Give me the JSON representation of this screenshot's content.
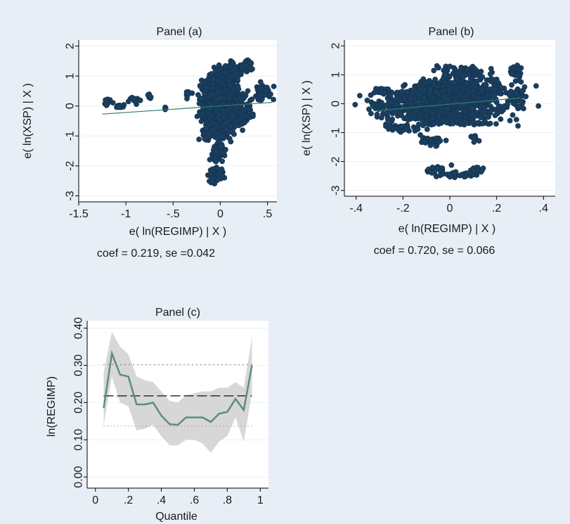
{
  "chart_data": [
    {
      "type": "scatter",
      "title": "Panel (a)",
      "xlabel": "e( ln(REGIMP) | X )",
      "ylabel": "e( ln(XSP) | X )",
      "xlim": [
        -1.5,
        0.6
      ],
      "ylim": [
        -3.2,
        2.2
      ],
      "xticks": [
        -1.5,
        -1,
        -0.5,
        0,
        0.5
      ],
      "xtick_labels": [
        "-1.5",
        "-1",
        "-.5",
        "0",
        ".5"
      ],
      "yticks": [
        -3,
        -2,
        -1,
        0,
        1,
        2
      ],
      "ytick_labels": [
        "-3",
        "-2",
        "-1",
        "0",
        "1",
        "2"
      ],
      "grid": "horizontal",
      "caption": "coef = 0.219, se =0.042",
      "fit": {
        "x": [
          -1.25,
          0.55
        ],
        "y": [
          -0.27,
          0.12
        ]
      },
      "clusters": [
        {
          "cx": -1.2,
          "cy": 0.15,
          "rx": 0.04,
          "ry": 0.12,
          "n": 14
        },
        {
          "cx": -1.05,
          "cy": 0.0,
          "rx": 0.04,
          "ry": 0.08,
          "n": 10
        },
        {
          "cx": -0.9,
          "cy": 0.2,
          "rx": 0.05,
          "ry": 0.1,
          "n": 12
        },
        {
          "cx": -0.75,
          "cy": 0.3,
          "rx": 0.03,
          "ry": 0.08,
          "n": 6
        },
        {
          "cx": -0.58,
          "cy": -0.08,
          "rx": 0.02,
          "ry": 0.05,
          "n": 4
        },
        {
          "cx": -0.35,
          "cy": 0.4,
          "rx": 0.04,
          "ry": 0.15,
          "n": 10
        },
        {
          "cx": 0.0,
          "cy": 0.2,
          "rx": 0.18,
          "ry": 0.65,
          "n": 700
        },
        {
          "cx": 0.0,
          "cy": -0.6,
          "rx": 0.12,
          "ry": 0.45,
          "n": 260
        },
        {
          "cx": 0.05,
          "cy": 0.9,
          "rx": 0.12,
          "ry": 0.35,
          "n": 160
        },
        {
          "cx": 0.15,
          "cy": 1.2,
          "rx": 0.08,
          "ry": 0.2,
          "n": 60
        },
        {
          "cx": 0.28,
          "cy": 1.35,
          "rx": 0.05,
          "ry": 0.15,
          "n": 40
        },
        {
          "cx": 0.45,
          "cy": 0.5,
          "rx": 0.08,
          "ry": 0.25,
          "n": 60
        },
        {
          "cx": -0.02,
          "cy": -1.55,
          "rx": 0.08,
          "ry": 0.25,
          "n": 60
        },
        {
          "cx": -0.05,
          "cy": -2.3,
          "rx": 0.08,
          "ry": 0.2,
          "n": 50
        },
        {
          "cx": -0.15,
          "cy": -1.0,
          "rx": 0.05,
          "ry": 0.15,
          "n": 20
        },
        {
          "cx": 0.2,
          "cy": -0.2,
          "rx": 0.1,
          "ry": 0.35,
          "n": 90
        }
      ]
    },
    {
      "type": "scatter",
      "title": "Panel (b)",
      "xlabel": "e( ln(REGIMP) | X )",
      "ylabel": "e( ln(XSP) | X )",
      "xlim": [
        -0.45,
        0.45
      ],
      "ylim": [
        -3.2,
        2.2
      ],
      "xticks": [
        -0.4,
        -0.2,
        0,
        0.2,
        0.4
      ],
      "xtick_labels": [
        "-.4",
        "-.2",
        "0",
        ".2",
        ".4"
      ],
      "yticks": [
        -3,
        -2,
        -1,
        0,
        1,
        2
      ],
      "ytick_labels": [
        "-3",
        "-2",
        "-1",
        "0",
        "1",
        "2"
      ],
      "grid": "horizontal",
      "caption": "coef = 0.720, se = 0.066",
      "fit": {
        "x": [
          -0.32,
          0.3
        ],
        "y": [
          -0.25,
          0.2
        ]
      },
      "clusters": [
        {
          "cx": -0.3,
          "cy": 0.45,
          "rx": 0.03,
          "ry": 0.12,
          "n": 15
        },
        {
          "cx": -0.3,
          "cy": -0.15,
          "rx": 0.03,
          "ry": 0.08,
          "n": 10
        },
        {
          "cx": -0.05,
          "cy": 0.05,
          "rx": 0.22,
          "ry": 0.4,
          "n": 800
        },
        {
          "cx": 0.05,
          "cy": 0.55,
          "rx": 0.18,
          "ry": 0.3,
          "n": 260
        },
        {
          "cx": 0.0,
          "cy": -0.5,
          "rx": 0.2,
          "ry": 0.25,
          "n": 220
        },
        {
          "cx": 0.05,
          "cy": 1.1,
          "rx": 0.1,
          "ry": 0.2,
          "n": 70
        },
        {
          "cx": 0.28,
          "cy": 1.1,
          "rx": 0.02,
          "ry": 0.3,
          "n": 30
        },
        {
          "cx": 0.28,
          "cy": 0.2,
          "rx": 0.03,
          "ry": 0.3,
          "n": 40
        },
        {
          "cx": -0.22,
          "cy": -0.85,
          "rx": 0.06,
          "ry": 0.15,
          "n": 30
        },
        {
          "cx": -0.08,
          "cy": -1.3,
          "rx": 0.04,
          "ry": 0.15,
          "n": 25
        },
        {
          "cx": -0.05,
          "cy": -2.3,
          "rx": 0.05,
          "ry": 0.12,
          "n": 25
        },
        {
          "cx": 0.04,
          "cy": -2.45,
          "rx": 0.06,
          "ry": 0.08,
          "n": 30
        },
        {
          "cx": 0.12,
          "cy": -2.3,
          "rx": 0.03,
          "ry": 0.12,
          "n": 15
        },
        {
          "cx": 0.1,
          "cy": -1.2,
          "rx": 0.02,
          "ry": 0.1,
          "n": 10
        }
      ]
    },
    {
      "type": "line",
      "title": "Panel (c)",
      "xlabel": "Quantile",
      "ylabel": "ln(REGIMP)",
      "xlim": [
        -0.05,
        1.05
      ],
      "ylim": [
        -0.03,
        0.42
      ],
      "xticks": [
        0,
        0.2,
        0.4,
        0.6,
        0.8,
        1
      ],
      "xtick_labels": [
        "0",
        ".2",
        ".4",
        ".6",
        ".8",
        "1"
      ],
      "yticks": [
        0,
        0.1,
        0.2,
        0.3,
        0.4
      ],
      "ytick_labels": [
        "0.00",
        "0.10",
        "0.20",
        "0.30",
        "0.40"
      ],
      "grid": "horizontal",
      "quantiles": [
        0.05,
        0.1,
        0.15,
        0.2,
        0.25,
        0.3,
        0.35,
        0.4,
        0.45,
        0.5,
        0.55,
        0.6,
        0.65,
        0.7,
        0.75,
        0.8,
        0.85,
        0.9,
        0.95
      ],
      "estimate": [
        0.185,
        0.332,
        0.275,
        0.27,
        0.195,
        0.195,
        0.2,
        0.165,
        0.142,
        0.14,
        0.16,
        0.16,
        0.16,
        0.148,
        0.17,
        0.175,
        0.21,
        0.18,
        0.3
      ],
      "ci_upper": [
        0.28,
        0.39,
        0.35,
        0.33,
        0.27,
        0.26,
        0.255,
        0.23,
        0.205,
        0.2,
        0.22,
        0.225,
        0.23,
        0.23,
        0.24,
        0.24,
        0.255,
        0.24,
        0.375
      ],
      "ci_lower": [
        0.14,
        0.27,
        0.2,
        0.19,
        0.125,
        0.13,
        0.14,
        0.11,
        0.085,
        0.085,
        0.1,
        0.1,
        0.09,
        0.065,
        0.095,
        0.11,
        0.16,
        0.095,
        0.225
      ],
      "ols": 0.218,
      "ols_ci_upper": 0.302,
      "ols_ci_lower": 0.137
    }
  ]
}
